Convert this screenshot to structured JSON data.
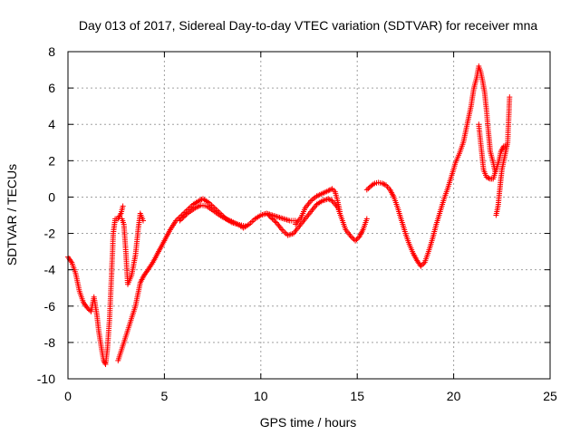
{
  "chart_data": {
    "type": "scatter",
    "title": "Day 013 of 2017, Sidereal Day-to-day VTEC variation (SDTVAR) for receiver mna",
    "xlabel": "GPS time / hours",
    "ylabel": "SDTVAR / TECUs",
    "xlim": [
      0,
      25
    ],
    "ylim": [
      -10,
      8
    ],
    "grid": true,
    "xticks": [
      0,
      5,
      10,
      15,
      20,
      25
    ],
    "yticks": [
      -10,
      -8,
      -6,
      -4,
      -2,
      0,
      2,
      4,
      6,
      8
    ],
    "xtick_labels": [
      "0",
      "5",
      "10",
      "15",
      "20",
      "25"
    ],
    "ytick_labels": [
      "-10",
      "-8",
      "-6",
      "-4",
      "-2",
      "0",
      "2",
      "4",
      "6",
      "8"
    ],
    "marker": "plus",
    "color": "#ff0000",
    "series": [
      {
        "name": "SDTVAR",
        "segments": [
          [
            [
              0.0,
              -3.3
            ],
            [
              0.2,
              -3.6
            ],
            [
              0.4,
              -4.2
            ],
            [
              0.6,
              -5.2
            ],
            [
              0.8,
              -5.8
            ],
            [
              1.0,
              -6.1
            ],
            [
              1.2,
              -6.3
            ],
            [
              1.35,
              -5.5
            ],
            [
              1.5,
              -6.5
            ],
            [
              1.6,
              -7.4
            ],
            [
              1.75,
              -8.4
            ],
            [
              1.85,
              -9.0
            ],
            [
              1.95,
              -9.2
            ],
            [
              2.05,
              -8.3
            ],
            [
              2.15,
              -6.8
            ],
            [
              2.25,
              -4.5
            ],
            [
              2.35,
              -2.0
            ],
            [
              2.45,
              -1.2
            ],
            [
              2.6,
              -1.2
            ],
            [
              2.75,
              -0.9
            ],
            [
              2.85,
              -0.5
            ]
          ],
          [
            [
              2.8,
              -1.2
            ],
            [
              2.9,
              -1.5
            ],
            [
              3.0,
              -3.0
            ],
            [
              3.1,
              -4.8
            ],
            [
              3.3,
              -4.3
            ],
            [
              3.5,
              -3.2
            ],
            [
              3.65,
              -1.7
            ],
            [
              3.75,
              -0.9
            ],
            [
              3.9,
              -1.3
            ]
          ],
          [
            [
              2.6,
              -9.0
            ],
            [
              2.9,
              -8.0
            ],
            [
              3.2,
              -7.0
            ],
            [
              3.5,
              -6.0
            ],
            [
              3.75,
              -4.7
            ],
            [
              3.95,
              -4.3
            ],
            [
              4.15,
              -4.0
            ],
            [
              4.4,
              -3.6
            ],
            [
              4.7,
              -3.0
            ],
            [
              5.0,
              -2.4
            ],
            [
              5.3,
              -1.8
            ],
            [
              5.6,
              -1.3
            ],
            [
              5.9,
              -1.0
            ],
            [
              6.2,
              -0.7
            ],
            [
              6.5,
              -0.4
            ],
            [
              6.8,
              -0.2
            ],
            [
              7.0,
              -0.1
            ],
            [
              7.3,
              -0.3
            ],
            [
              7.6,
              -0.6
            ],
            [
              7.9,
              -0.9
            ],
            [
              8.2,
              -1.2
            ],
            [
              8.5,
              -1.4
            ],
            [
              8.8,
              -1.5
            ],
            [
              9.1,
              -1.7
            ],
            [
              9.4,
              -1.5
            ],
            [
              9.7,
              -1.2
            ],
            [
              10.0,
              -1.0
            ],
            [
              10.3,
              -0.9
            ],
            [
              10.6,
              -1.0
            ],
            [
              10.9,
              -1.1
            ],
            [
              11.2,
              -1.2
            ],
            [
              11.5,
              -1.3
            ],
            [
              11.8,
              -1.3
            ]
          ],
          [
            [
              5.8,
              -1.3
            ],
            [
              6.2,
              -0.9
            ],
            [
              6.6,
              -0.6
            ],
            [
              6.9,
              -0.45
            ],
            [
              7.2,
              -0.5
            ],
            [
              7.6,
              -0.8
            ],
            [
              8.0,
              -1.1
            ],
            [
              8.4,
              -1.3
            ],
            [
              8.8,
              -1.5
            ],
            [
              9.2,
              -1.6
            ]
          ],
          [
            [
              10.4,
              -1.0
            ],
            [
              10.8,
              -1.4
            ],
            [
              11.1,
              -1.8
            ],
            [
              11.4,
              -2.1
            ],
            [
              11.7,
              -2.0
            ],
            [
              12.0,
              -1.6
            ],
            [
              12.3,
              -1.2
            ],
            [
              12.6,
              -0.8
            ],
            [
              12.9,
              -0.4
            ],
            [
              13.2,
              -0.2
            ],
            [
              13.5,
              -0.1
            ],
            [
              13.7,
              -0.2
            ],
            [
              14.0,
              -0.6
            ],
            [
              14.2,
              -1.2
            ],
            [
              14.4,
              -1.8
            ],
            [
              14.7,
              -2.2
            ],
            [
              14.9,
              -2.4
            ],
            [
              15.1,
              -2.2
            ],
            [
              15.3,
              -1.8
            ],
            [
              15.5,
              -1.2
            ]
          ],
          [
            [
              11.8,
              -1.5
            ],
            [
              12.1,
              -1.1
            ],
            [
              12.3,
              -0.6
            ],
            [
              12.6,
              -0.2
            ],
            [
              12.9,
              0.05
            ],
            [
              13.2,
              0.2
            ],
            [
              13.5,
              0.35
            ],
            [
              13.7,
              0.45
            ],
            [
              13.85,
              0.3
            ],
            [
              14.0,
              -0.3
            ],
            [
              14.1,
              -0.8
            ]
          ],
          [
            [
              15.5,
              0.4
            ],
            [
              15.7,
              0.6
            ],
            [
              15.9,
              0.75
            ],
            [
              16.1,
              0.8
            ],
            [
              16.3,
              0.75
            ],
            [
              16.5,
              0.65
            ],
            [
              16.7,
              0.4
            ],
            [
              16.9,
              0.0
            ],
            [
              17.1,
              -0.6
            ],
            [
              17.3,
              -1.3
            ],
            [
              17.5,
              -2.0
            ],
            [
              17.7,
              -2.6
            ],
            [
              17.9,
              -3.1
            ],
            [
              18.1,
              -3.5
            ],
            [
              18.3,
              -3.8
            ],
            [
              18.5,
              -3.6
            ],
            [
              18.7,
              -3.0
            ],
            [
              18.9,
              -2.3
            ],
            [
              19.1,
              -1.5
            ],
            [
              19.3,
              -0.8
            ],
            [
              19.5,
              -0.1
            ],
            [
              19.7,
              0.5
            ],
            [
              19.9,
              1.2
            ],
            [
              20.1,
              1.9
            ],
            [
              20.3,
              2.4
            ],
            [
              20.5,
              3.0
            ],
            [
              20.7,
              4.0
            ],
            [
              20.9,
              5.0
            ],
            [
              21.05,
              6.0
            ],
            [
              21.2,
              6.6
            ],
            [
              21.3,
              7.2
            ],
            [
              21.4,
              6.9
            ],
            [
              21.5,
              6.4
            ],
            [
              21.6,
              5.8
            ],
            [
              21.7,
              4.8
            ],
            [
              21.8,
              3.6
            ],
            [
              21.9,
              2.5
            ],
            [
              22.05,
              1.9
            ],
            [
              22.15,
              1.4
            ]
          ],
          [
            [
              21.3,
              4.0
            ],
            [
              21.45,
              2.5
            ],
            [
              21.55,
              1.5
            ],
            [
              21.7,
              1.1
            ],
            [
              21.9,
              1.0
            ],
            [
              22.05,
              1.0
            ],
            [
              22.2,
              1.5
            ],
            [
              22.35,
              2.0
            ],
            [
              22.45,
              2.5
            ],
            [
              22.6,
              2.8
            ],
            [
              22.75,
              2.8
            ]
          ],
          [
            [
              22.2,
              -1.0
            ],
            [
              22.3,
              -0.5
            ],
            [
              22.4,
              0.5
            ],
            [
              22.5,
              1.5
            ],
            [
              22.6,
              2.0
            ],
            [
              22.7,
              2.5
            ],
            [
              22.8,
              3.0
            ],
            [
              22.9,
              5.5
            ]
          ]
        ]
      }
    ]
  }
}
